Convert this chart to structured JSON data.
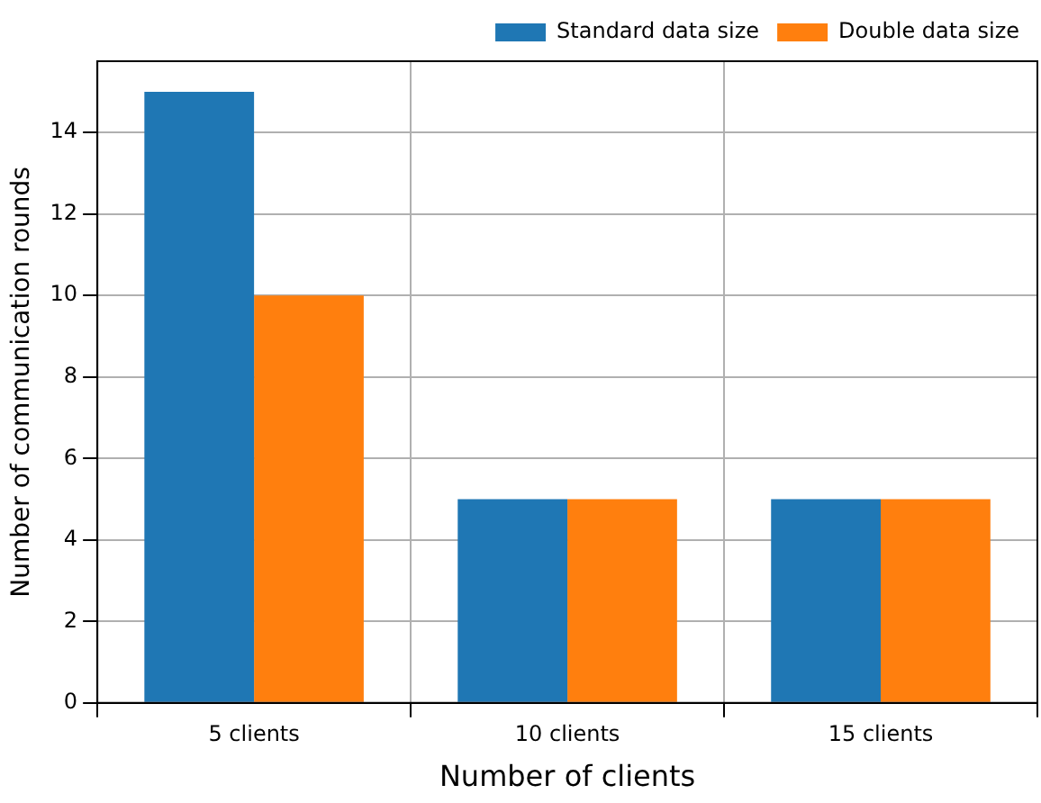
{
  "chart_data": {
    "type": "bar",
    "xlabel": "Number of clients",
    "ylabel": "Number of communication rounds",
    "categories": [
      "5 clients",
      "10 clients",
      "15 clients"
    ],
    "series": [
      {
        "name": "Standard data size",
        "color": "#1f77b4",
        "values": [
          15,
          5,
          5
        ]
      },
      {
        "name": "Double data size",
        "color": "#ff7f0e",
        "values": [
          10,
          5,
          5
        ]
      }
    ],
    "ylim": [
      0,
      15.75
    ],
    "yticks": [
      0,
      2,
      4,
      6,
      8,
      10,
      12,
      14
    ],
    "grid": true,
    "legend": "top right"
  }
}
